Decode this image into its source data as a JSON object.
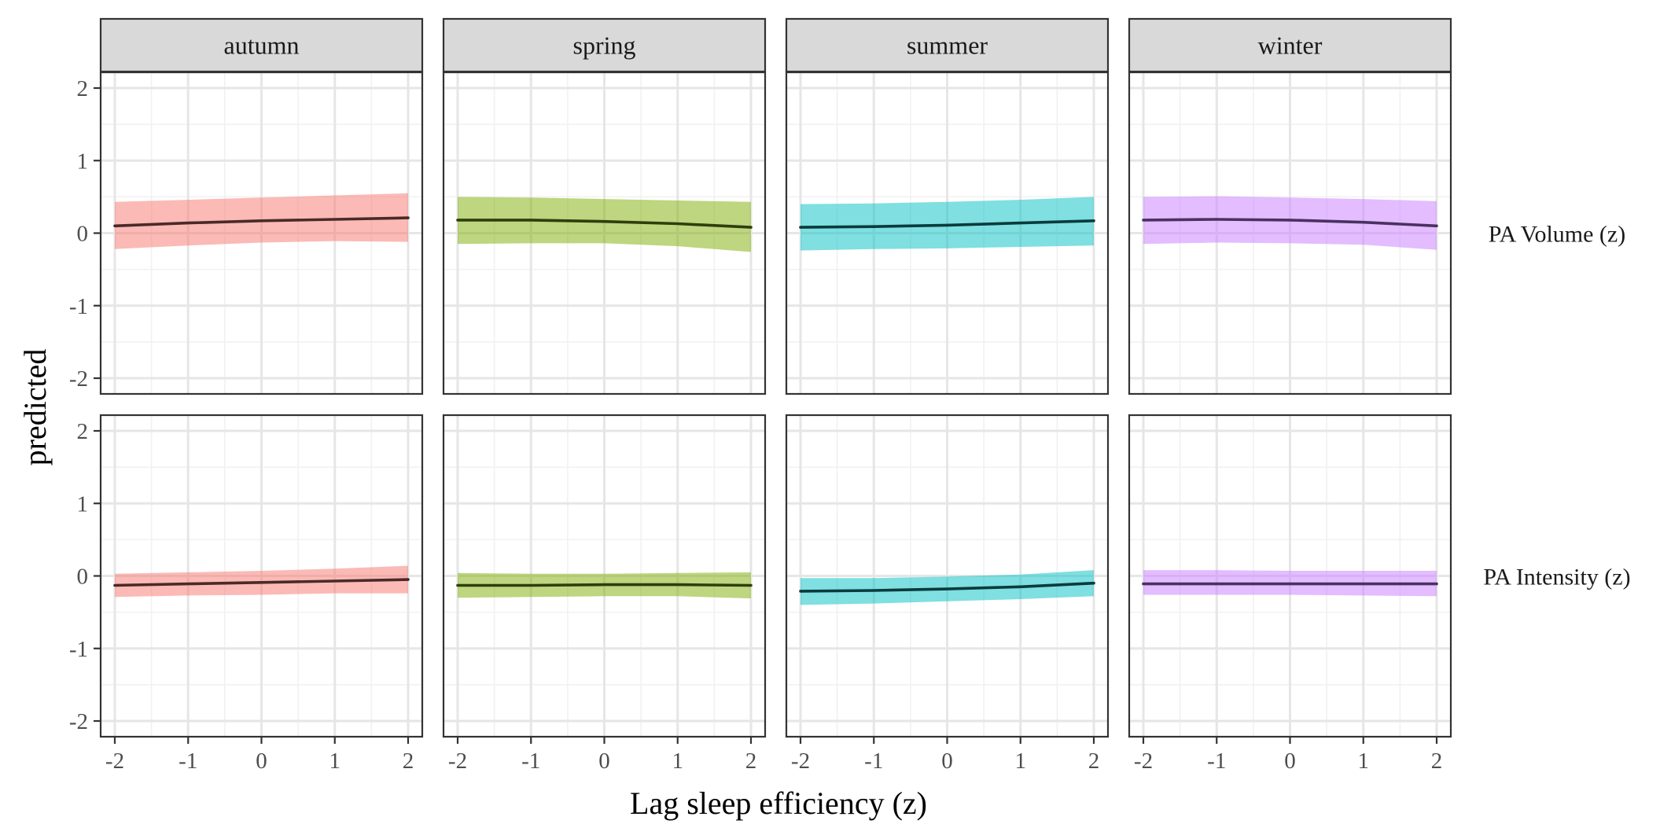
{
  "chart_data": {
    "type": "line",
    "facet_columns": [
      "autumn",
      "spring",
      "summer",
      "winter"
    ],
    "facet_rows": [
      "PA Volume (z)",
      "PA Intensity (z)"
    ],
    "xlabel": "Lag sleep efficiency (z)",
    "ylabel": "predicted",
    "xlim": [
      -2,
      2
    ],
    "ylim": [
      -2,
      2
    ],
    "x_ticks": [
      -2,
      -1,
      0,
      1,
      2
    ],
    "y_ticks": [
      -2,
      -1,
      0,
      1,
      2
    ],
    "x_tick_labels": [
      "-2",
      "-1",
      "0",
      "1",
      "2"
    ],
    "y_tick_labels": [
      "-2",
      "-1",
      "0",
      "1",
      "2"
    ],
    "grid": true,
    "legend": "none",
    "colors": {
      "autumn": "#F8766D",
      "spring": "#7CAE00",
      "summer": "#00BFC4",
      "winter": "#C77CFF",
      "autumn_line": "#4a2a28",
      "spring_line": "#2f3e0b",
      "summer_line": "#0a3b3c",
      "winter_line": "#4a3160"
    },
    "panels": [
      {
        "row": "PA Volume (z)",
        "season": "autumn",
        "x": [
          -2,
          -1,
          0,
          1,
          2
        ],
        "fit": [
          0.1,
          0.14,
          0.17,
          0.19,
          0.21
        ],
        "lower": [
          -0.22,
          -0.17,
          -0.13,
          -0.11,
          -0.12
        ],
        "upper": [
          0.43,
          0.46,
          0.49,
          0.52,
          0.55
        ]
      },
      {
        "row": "PA Volume (z)",
        "season": "spring",
        "x": [
          -2,
          -1,
          0,
          1,
          2
        ],
        "fit": [
          0.18,
          0.18,
          0.16,
          0.13,
          0.08
        ],
        "lower": [
          -0.15,
          -0.14,
          -0.14,
          -0.18,
          -0.26
        ],
        "upper": [
          0.5,
          0.49,
          0.47,
          0.45,
          0.43
        ]
      },
      {
        "row": "PA Volume (z)",
        "season": "summer",
        "x": [
          -2,
          -1,
          0,
          1,
          2
        ],
        "fit": [
          0.08,
          0.09,
          0.11,
          0.14,
          0.17
        ],
        "lower": [
          -0.24,
          -0.22,
          -0.21,
          -0.19,
          -0.17
        ],
        "upper": [
          0.4,
          0.41,
          0.43,
          0.46,
          0.5
        ]
      },
      {
        "row": "PA Volume (z)",
        "season": "winter",
        "x": [
          -2,
          -1,
          0,
          1,
          2
        ],
        "fit": [
          0.18,
          0.19,
          0.18,
          0.15,
          0.1
        ],
        "lower": [
          -0.15,
          -0.13,
          -0.14,
          -0.16,
          -0.23
        ],
        "upper": [
          0.5,
          0.51,
          0.49,
          0.47,
          0.44
        ]
      },
      {
        "row": "PA Intensity (z)",
        "season": "autumn",
        "x": [
          -2,
          -1,
          0,
          1,
          2
        ],
        "fit": [
          -0.13,
          -0.11,
          -0.09,
          -0.07,
          -0.05
        ],
        "lower": [
          -0.29,
          -0.27,
          -0.26,
          -0.24,
          -0.24
        ],
        "upper": [
          0.03,
          0.05,
          0.07,
          0.1,
          0.14
        ]
      },
      {
        "row": "PA Intensity (z)",
        "season": "spring",
        "x": [
          -2,
          -1,
          0,
          1,
          2
        ],
        "fit": [
          -0.13,
          -0.13,
          -0.12,
          -0.12,
          -0.13
        ],
        "lower": [
          -0.3,
          -0.29,
          -0.28,
          -0.28,
          -0.31
        ],
        "upper": [
          0.04,
          0.03,
          0.03,
          0.04,
          0.05
        ]
      },
      {
        "row": "PA Intensity (z)",
        "season": "summer",
        "x": [
          -2,
          -1,
          0,
          1,
          2
        ],
        "fit": [
          -0.21,
          -0.2,
          -0.18,
          -0.15,
          -0.1
        ],
        "lower": [
          -0.4,
          -0.38,
          -0.35,
          -0.32,
          -0.28
        ],
        "upper": [
          -0.03,
          -0.03,
          -0.01,
          0.02,
          0.08
        ]
      },
      {
        "row": "PA Intensity (z)",
        "season": "winter",
        "x": [
          -2,
          -1,
          0,
          1,
          2
        ],
        "fit": [
          -0.11,
          -0.11,
          -0.11,
          -0.11,
          -0.11
        ],
        "lower": [
          -0.26,
          -0.26,
          -0.26,
          -0.27,
          -0.28
        ],
        "upper": [
          0.08,
          0.08,
          0.07,
          0.07,
          0.07
        ]
      }
    ]
  }
}
